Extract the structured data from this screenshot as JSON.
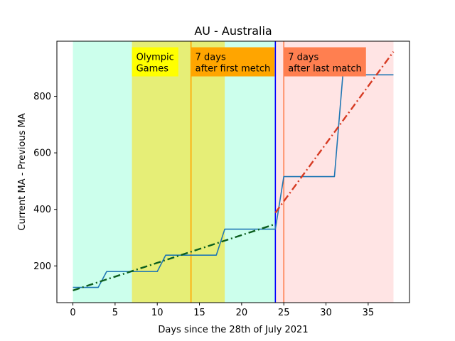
{
  "chart_data": {
    "type": "line",
    "title": "AU - Australia",
    "xlabel": "Days since the 28th of July 2021",
    "ylabel": "Current MA - Previous MA",
    "xlim": [
      -1.9,
      39.9
    ],
    "ylim": [
      70,
      995
    ],
    "xticks": [
      0,
      5,
      10,
      15,
      20,
      25,
      30,
      35
    ],
    "yticks": [
      200,
      400,
      600,
      800
    ],
    "grid": false,
    "spans": [
      {
        "x0": 0,
        "x1": 24,
        "color": "#ccffec"
      },
      {
        "x0": 7,
        "x1": 18,
        "color": "#e6ee77"
      },
      {
        "x0": 24,
        "x1": 38,
        "color": "#ffe4e4"
      }
    ],
    "vlines": [
      {
        "x": 14,
        "color": "#ffa500"
      },
      {
        "x": 24,
        "color": "#0000ff"
      },
      {
        "x": 25,
        "color": "#ff7f50"
      }
    ],
    "annotations": [
      {
        "x": 7.0,
        "y": 966,
        "lines": [
          "Olympic",
          "Games"
        ],
        "bg": "#ffff00"
      },
      {
        "x": 14.0,
        "y": 966,
        "lines": [
          "7 days",
          "after first metch"
        ],
        "bg": "#ffa500"
      },
      {
        "x": 25.0,
        "y": 966,
        "lines": [
          "7 days",
          "after last match"
        ],
        "bg": "#ff7f50"
      }
    ],
    "series": [
      {
        "color": "#1f77b4",
        "style": "solid",
        "x": [
          0,
          3,
          4,
          10,
          11,
          17,
          18,
          24,
          25,
          31,
          32,
          38
        ],
        "y": [
          124,
          124,
          180,
          180,
          238,
          238,
          330,
          330,
          516,
          516,
          876,
          876
        ]
      },
      {
        "color": "#0b5e1e",
        "style": "dashdot",
        "x": [
          0,
          24
        ],
        "y": [
          113,
          348
        ]
      },
      {
        "color": "#d63a22",
        "style": "dashdot",
        "x": [
          24,
          38
        ],
        "y": [
          388,
          958
        ]
      }
    ]
  }
}
